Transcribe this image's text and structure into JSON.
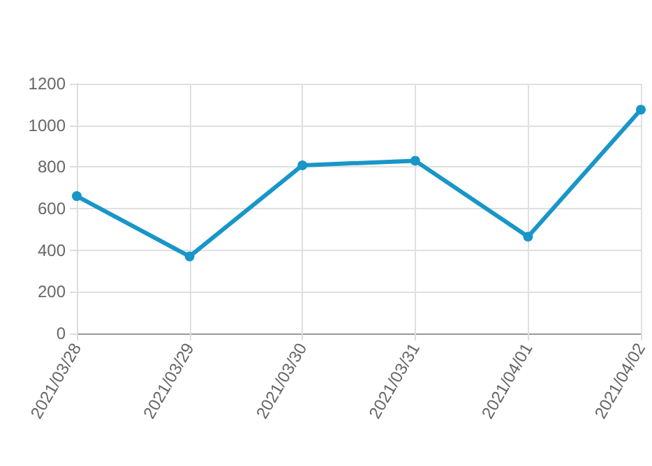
{
  "chart_data": {
    "type": "line",
    "categories": [
      "2021/03/28",
      "2021/03/29",
      "2021/03/30",
      "2021/03/31",
      "2021/04/01",
      "2021/04/02"
    ],
    "series": [
      {
        "color": "#1896c8",
        "values": [
          660,
          370,
          808,
          830,
          465,
          1075
        ]
      }
    ],
    "ylim": [
      0,
      1200
    ],
    "yticks": [
      0,
      200,
      400,
      600,
      800,
      1000,
      1200
    ],
    "grid": true,
    "marker": "circle",
    "line_style": "solid"
  }
}
